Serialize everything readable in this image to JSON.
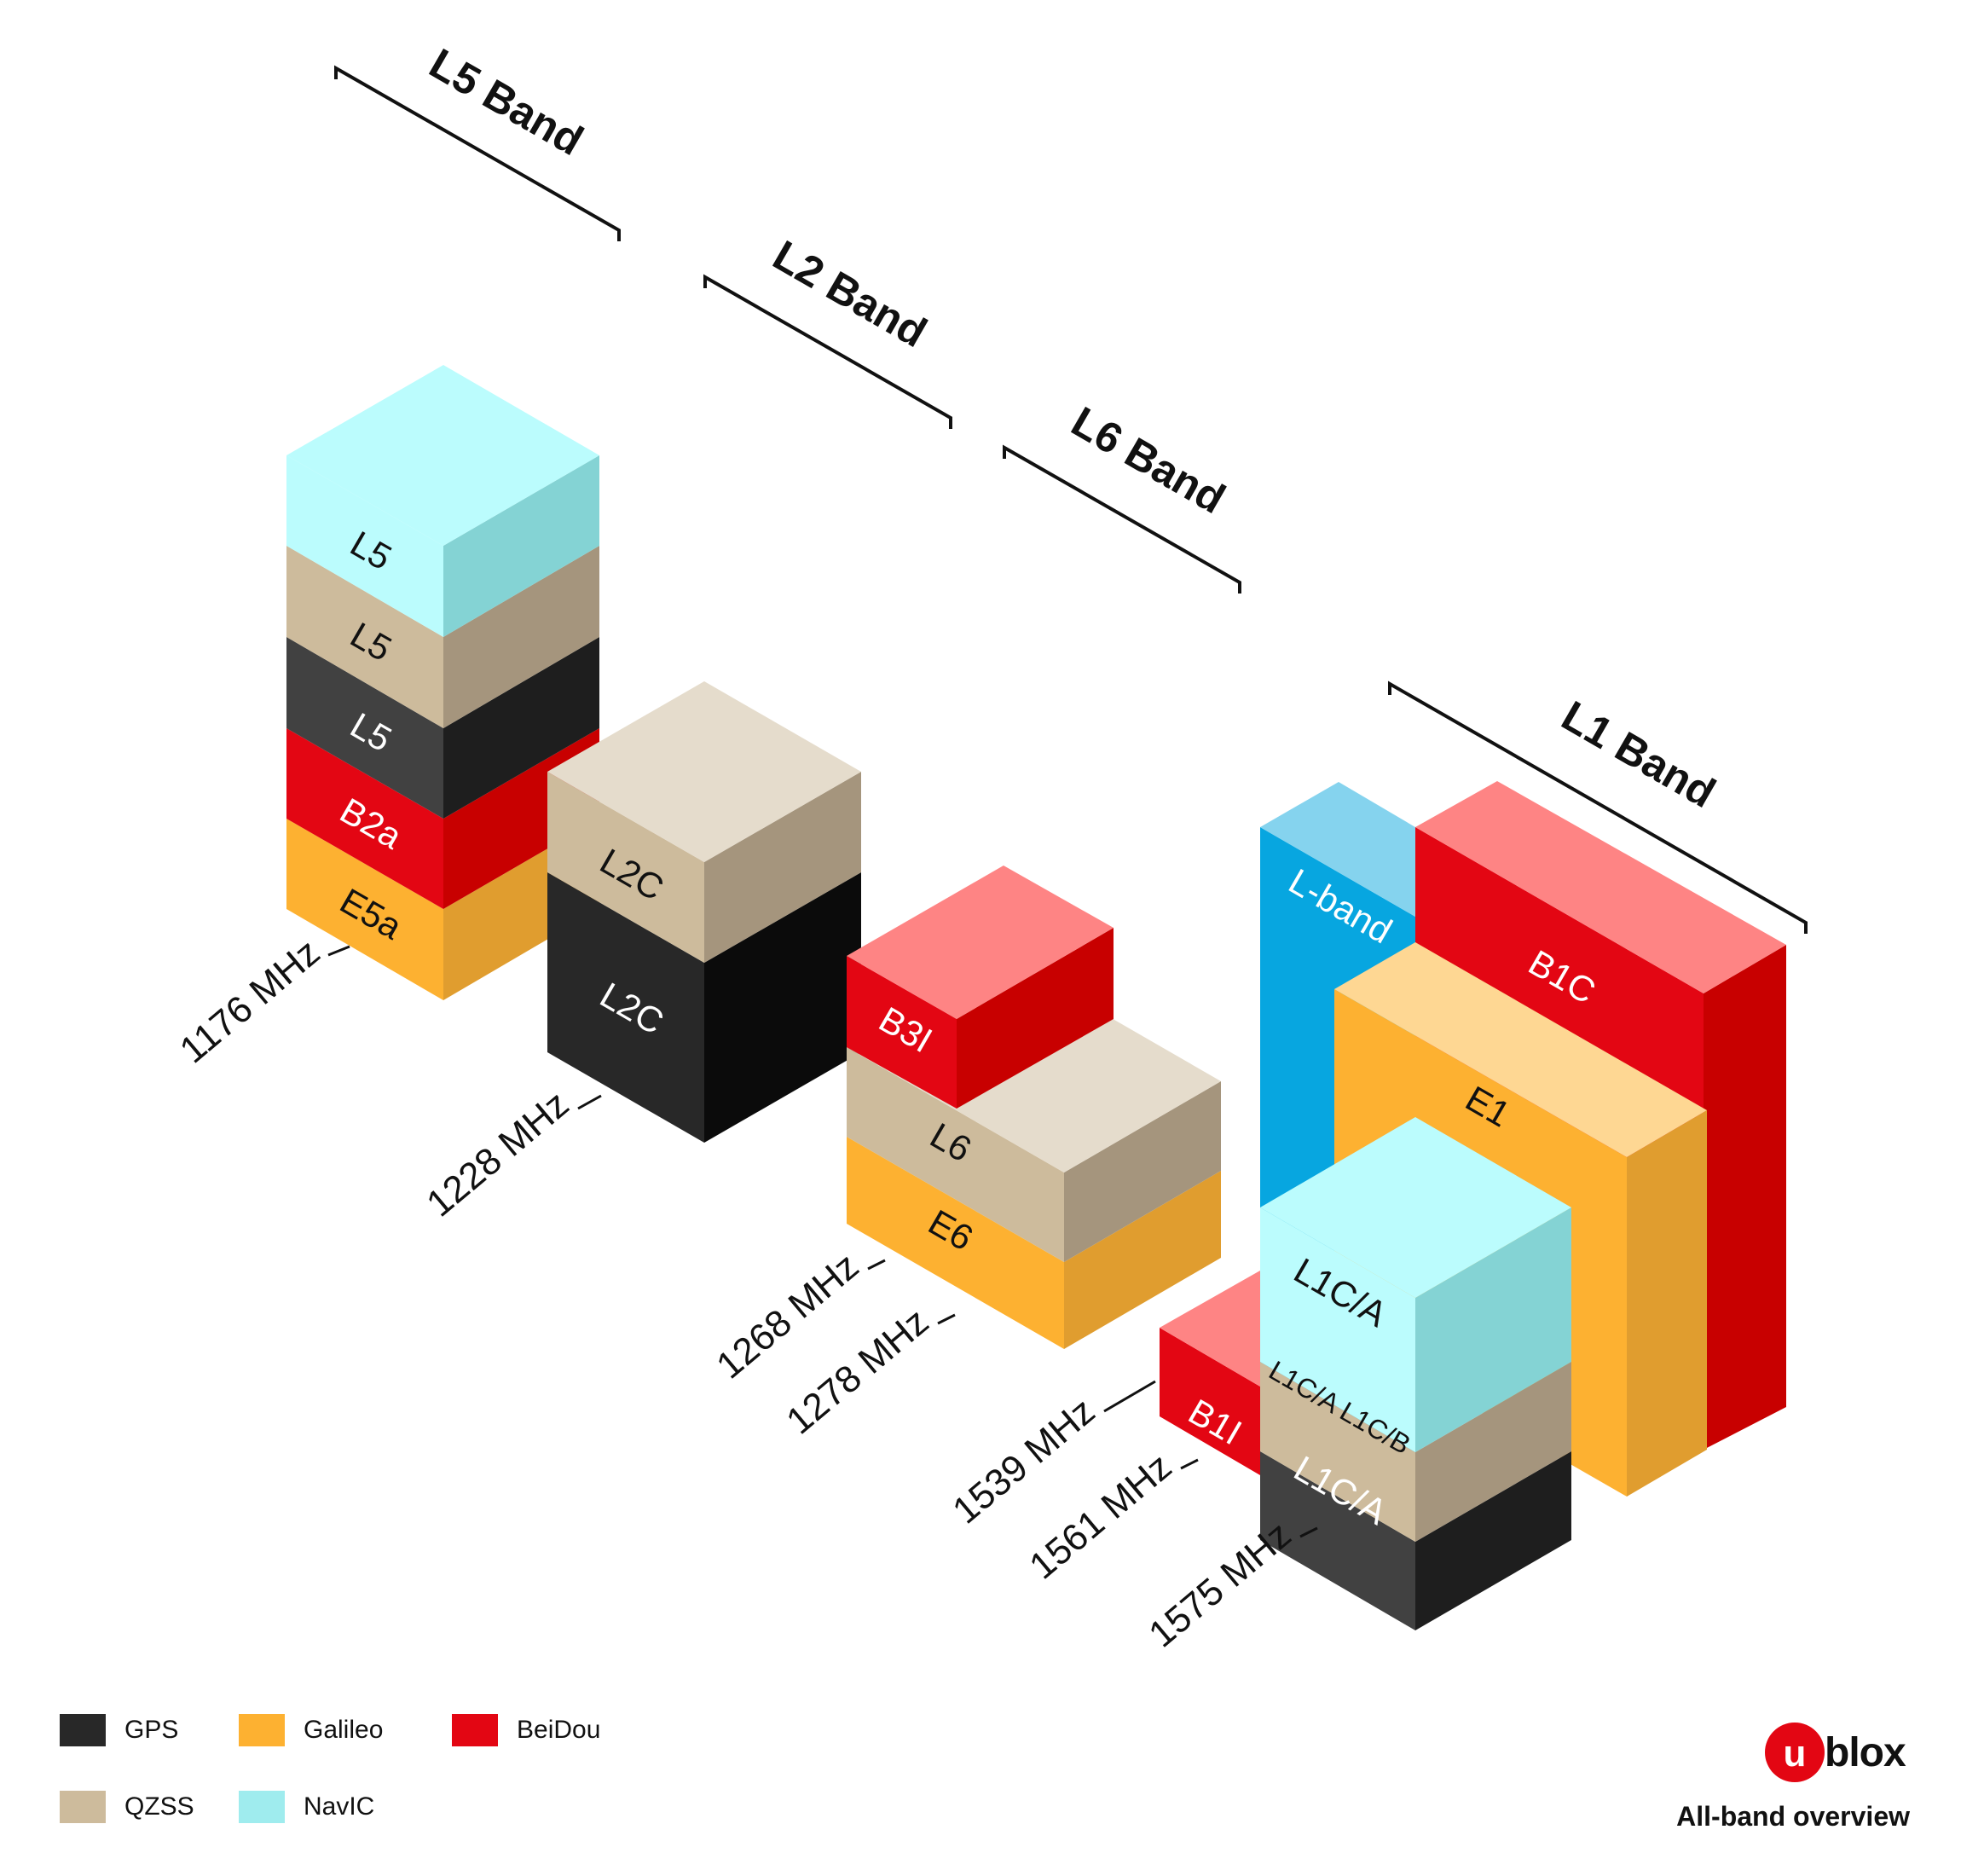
{
  "bands": {
    "l5": "L5 Band",
    "l2": "L2 Band",
    "l6": "L6 Band",
    "l1": "L1 Band"
  },
  "frequencies": {
    "f1176": "1176 MHz",
    "f1228": "1228 MHz",
    "f1268": "1268 MHz",
    "f1278": "1278 MHz",
    "f1539": "1539 MHz",
    "f1561": "1561 MHz",
    "f1575": "1575 MHz"
  },
  "signals": {
    "l5_navic": "L5",
    "l5_qzss": "L5",
    "l5_gps": "L5",
    "b2a": "B2a",
    "e5a": "E5a",
    "l2c_qzss": "L2C",
    "l2c_gps": "L2C",
    "b3i": "B3I",
    "l6": "L6",
    "e6": "E6",
    "lband": "L-band",
    "b1c": "B1C",
    "e1": "E1",
    "l1ca_navic": "L1C/A",
    "l1ca_qzss": "L1C/A L1C/B",
    "l1ca_gps": "L1C/A",
    "b1i": "B1I"
  },
  "legend": [
    {
      "label": "GPS",
      "color": "#282828"
    },
    {
      "label": "Galileo",
      "color": "#fdb131"
    },
    {
      "label": "BeiDou",
      "color": "#e30613"
    },
    {
      "label": "QZSS",
      "color": "#cdbb9c"
    },
    {
      "label": "NavIC",
      "color": "#9fecee"
    }
  ],
  "brand": {
    "mark": "u",
    "word": "blox"
  },
  "caption": "All-band overview"
}
